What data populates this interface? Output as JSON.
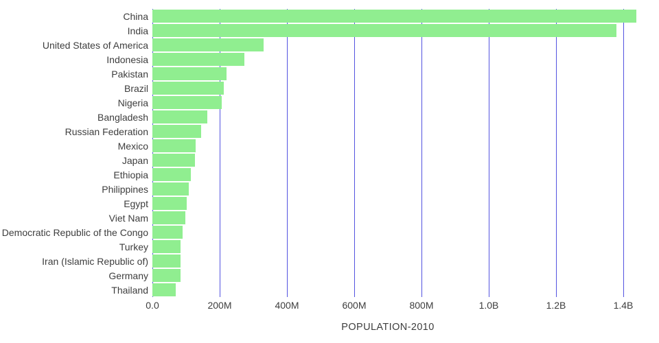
{
  "chart": {
    "bar_color": "#90ee90",
    "grid_color": "#5252e0",
    "text_color": "#3d3d3d",
    "background_color": "#ffffff"
  },
  "chart_data": {
    "type": "bar",
    "orientation": "horizontal",
    "title": "",
    "xlabel": "POPULATION-2010",
    "ylabel": "",
    "grid": true,
    "legend": false,
    "xlim": [
      0,
      1490000000
    ],
    "categories": [
      "China",
      "India",
      "United States of America",
      "Indonesia",
      "Pakistan",
      "Brazil",
      "Nigeria",
      "Bangladesh",
      "Russian Federation",
      "Mexico",
      "Japan",
      "Ethiopia",
      "Philippines",
      "Egypt",
      "Viet Nam",
      "Democratic Republic of the Congo",
      "Turkey",
      "Iran (Islamic Republic of)",
      "Germany",
      "Thailand"
    ],
    "values": [
      1439000000,
      1380000000,
      331000000,
      273000000,
      220000000,
      212000000,
      206000000,
      164000000,
      145000000,
      128000000,
      126000000,
      114000000,
      109000000,
      102000000,
      97000000,
      89000000,
      84000000,
      83000000,
      83000000,
      69000000
    ],
    "xticks": [
      {
        "value": 0,
        "label": "0.0"
      },
      {
        "value": 200000000,
        "label": "200M"
      },
      {
        "value": 400000000,
        "label": "400M"
      },
      {
        "value": 600000000,
        "label": "600M"
      },
      {
        "value": 800000000,
        "label": "800M"
      },
      {
        "value": 1000000000,
        "label": "1.0B"
      },
      {
        "value": 1200000000,
        "label": "1.2B"
      },
      {
        "value": 1400000000,
        "label": "1.4B"
      }
    ]
  }
}
